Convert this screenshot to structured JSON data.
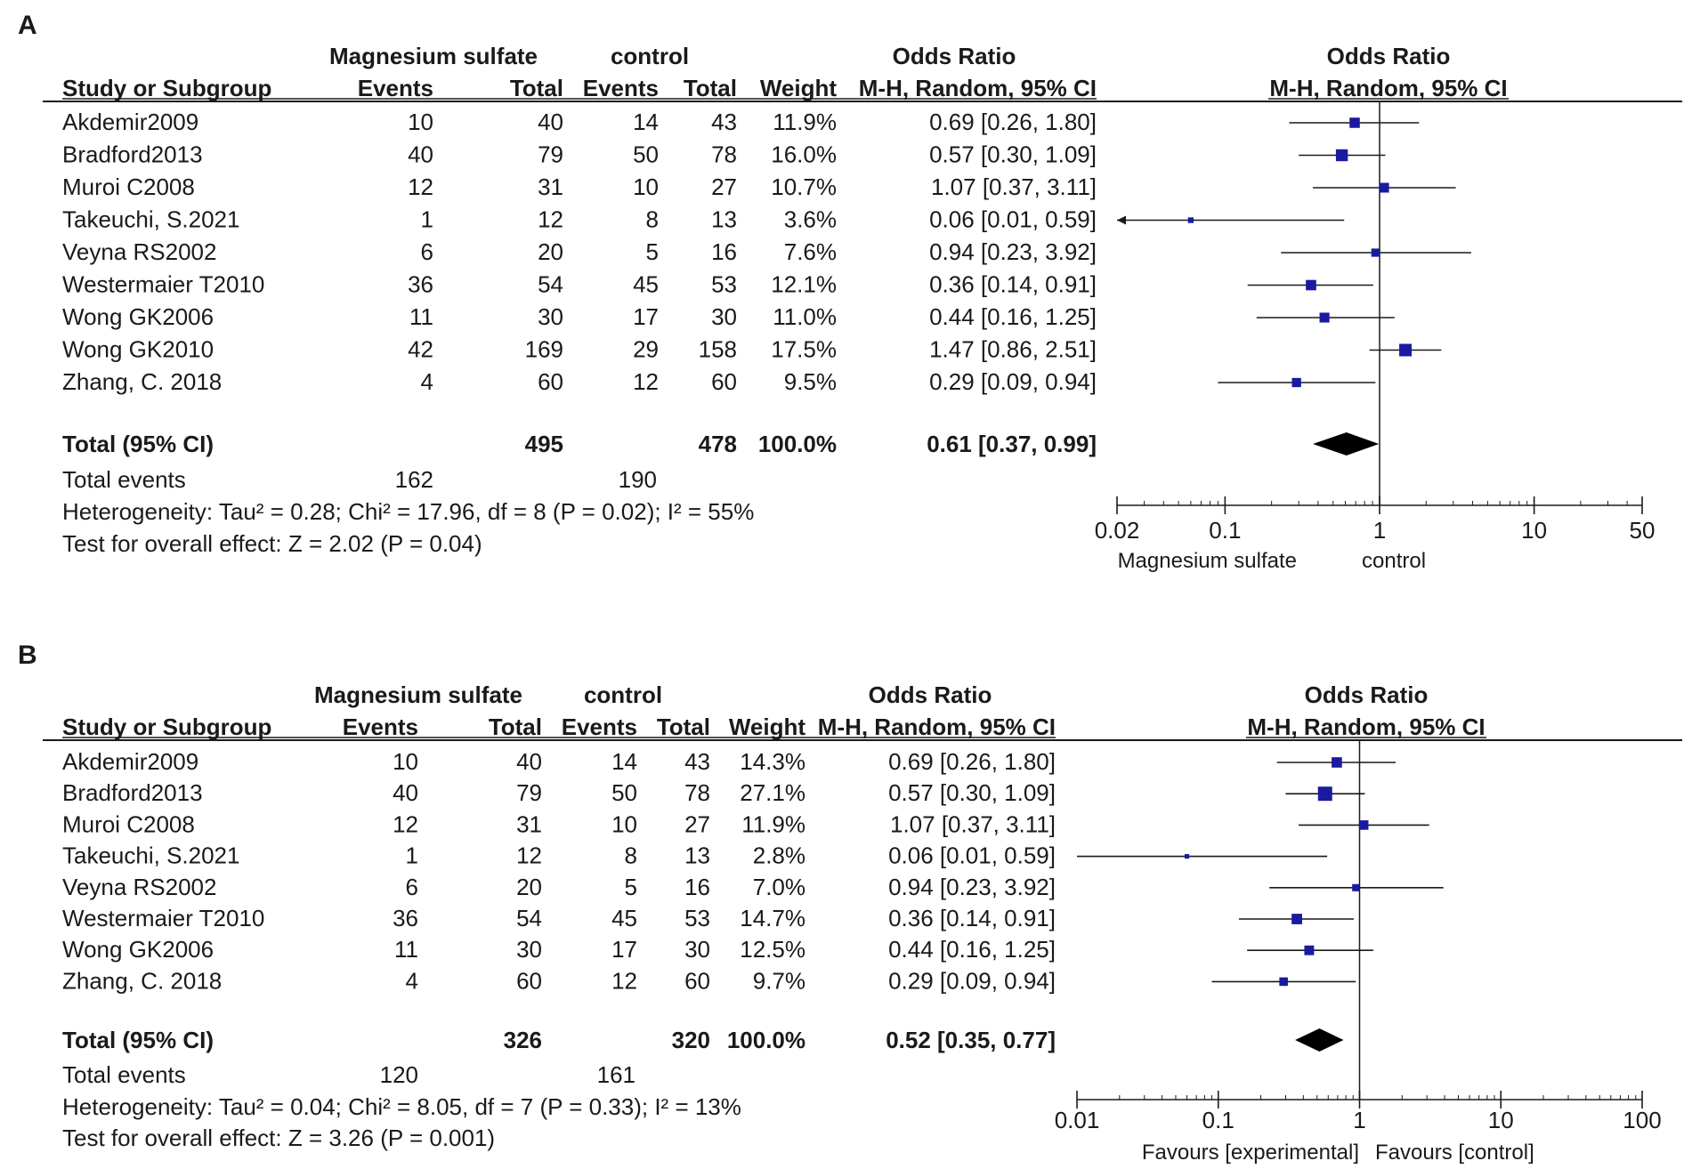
{
  "chart_data": [
    {
      "type": "forest",
      "panel_label": "A",
      "group_headers": {
        "experimental": "Magnesium sulfate",
        "control": "control",
        "or_left": "Odds Ratio",
        "or_right": "Odds Ratio"
      },
      "columns": {
        "study": "Study or Subgroup",
        "exp_events": "Events",
        "exp_total": "Total",
        "ctl_events": "Events",
        "ctl_total": "Total",
        "weight": "Weight",
        "ci": "M-H, Random, 95% CI",
        "ci_plot": "M-H, Random, 95% CI"
      },
      "studies": [
        {
          "name": "Akdemir2009",
          "exp_events": "10",
          "exp_total": "40",
          "ctl_events": "14",
          "ctl_total": "43",
          "weight_label": "11.9%",
          "ci_label": "0.69 [0.26, 1.80]",
          "or": 0.69,
          "lo": 0.26,
          "hi": 1.8,
          "weight": 11.9
        },
        {
          "name": "Bradford2013",
          "exp_events": "40",
          "exp_total": "79",
          "ctl_events": "50",
          "ctl_total": "78",
          "weight_label": "16.0%",
          "ci_label": "0.57 [0.30, 1.09]",
          "or": 0.57,
          "lo": 0.3,
          "hi": 1.09,
          "weight": 16.0
        },
        {
          "name": "Muroi C2008",
          "exp_events": "12",
          "exp_total": "31",
          "ctl_events": "10",
          "ctl_total": "27",
          "weight_label": "10.7%",
          "ci_label": "1.07 [0.37, 3.11]",
          "or": 1.07,
          "lo": 0.37,
          "hi": 3.11,
          "weight": 10.7
        },
        {
          "name": "Takeuchi, S.2021",
          "exp_events": "1",
          "exp_total": "12",
          "ctl_events": "8",
          "ctl_total": "13",
          "weight_label": "3.6%",
          "ci_label": "0.06 [0.01, 0.59]",
          "or": 0.06,
          "lo": 0.01,
          "hi": 0.59,
          "weight": 3.6
        },
        {
          "name": "Veyna RS2002",
          "exp_events": "6",
          "exp_total": "20",
          "ctl_events": "5",
          "ctl_total": "16",
          "weight_label": "7.6%",
          "ci_label": "0.94 [0.23, 3.92]",
          "or": 0.94,
          "lo": 0.23,
          "hi": 3.92,
          "weight": 7.6
        },
        {
          "name": "Westermaier T2010",
          "exp_events": "36",
          "exp_total": "54",
          "ctl_events": "45",
          "ctl_total": "53",
          "weight_label": "12.1%",
          "ci_label": "0.36 [0.14, 0.91]",
          "or": 0.36,
          "lo": 0.14,
          "hi": 0.91,
          "weight": 12.1
        },
        {
          "name": "Wong GK2006",
          "exp_events": "11",
          "exp_total": "30",
          "ctl_events": "17",
          "ctl_total": "30",
          "weight_label": "11.0%",
          "ci_label": "0.44 [0.16, 1.25]",
          "or": 0.44,
          "lo": 0.16,
          "hi": 1.25,
          "weight": 11.0
        },
        {
          "name": "Wong GK2010",
          "exp_events": "42",
          "exp_total": "169",
          "ctl_events": "29",
          "ctl_total": "158",
          "weight_label": "17.5%",
          "ci_label": "1.47 [0.86, 2.51]",
          "or": 1.47,
          "lo": 0.86,
          "hi": 2.51,
          "weight": 17.5
        },
        {
          "name": "Zhang, C. 2018",
          "exp_events": "4",
          "exp_total": "60",
          "ctl_events": "12",
          "ctl_total": "60",
          "weight_label": "9.5%",
          "ci_label": "0.29 [0.09, 0.94]",
          "or": 0.29,
          "lo": 0.09,
          "hi": 0.94,
          "weight": 9.5
        }
      ],
      "total": {
        "label": "Total (95% CI)",
        "exp_total": "495",
        "ctl_total": "478",
        "weight_label": "100.0%",
        "ci_label": "0.61 [0.37, 0.99]",
        "or": 0.61,
        "lo": 0.37,
        "hi": 0.99
      },
      "total_events": {
        "label": "Total events",
        "exp": "162",
        "ctl": "190"
      },
      "heterogeneity": "Heterogeneity: Tau² = 0.28; Chi² = 17.96, df = 8 (P = 0.02); I² = 55%",
      "overall_effect": "Test for overall effect: Z = 2.02 (P = 0.04)",
      "axis": {
        "scale": "log",
        "min": 0.02,
        "max": 50,
        "ticks": [
          0.02,
          0.1,
          1,
          10,
          50
        ],
        "tick_labels": [
          "0.02",
          "0.1",
          "1",
          "10",
          "50"
        ],
        "favours_left": "Magnesium sulfate",
        "favours_right": "control"
      }
    },
    {
      "type": "forest",
      "panel_label": "B",
      "group_headers": {
        "experimental": "Magnesium sulfate",
        "control": "control",
        "or_left": "Odds Ratio",
        "or_right": "Odds Ratio"
      },
      "columns": {
        "study": "Study or Subgroup",
        "exp_events": "Events",
        "exp_total": "Total",
        "ctl_events": "Events",
        "ctl_total": "Total",
        "weight": "Weight",
        "ci": "M-H, Random, 95% CI",
        "ci_plot": "M-H, Random, 95% CI"
      },
      "studies": [
        {
          "name": "Akdemir2009",
          "exp_events": "10",
          "exp_total": "40",
          "ctl_events": "14",
          "ctl_total": "43",
          "weight_label": "14.3%",
          "ci_label": "0.69 [0.26, 1.80]",
          "or": 0.69,
          "lo": 0.26,
          "hi": 1.8,
          "weight": 14.3
        },
        {
          "name": "Bradford2013",
          "exp_events": "40",
          "exp_total": "79",
          "ctl_events": "50",
          "ctl_total": "78",
          "weight_label": "27.1%",
          "ci_label": "0.57 [0.30, 1.09]",
          "or": 0.57,
          "lo": 0.3,
          "hi": 1.09,
          "weight": 27.1
        },
        {
          "name": "Muroi C2008",
          "exp_events": "12",
          "exp_total": "31",
          "ctl_events": "10",
          "ctl_total": "27",
          "weight_label": "11.9%",
          "ci_label": "1.07 [0.37, 3.11]",
          "or": 1.07,
          "lo": 0.37,
          "hi": 3.11,
          "weight": 11.9
        },
        {
          "name": "Takeuchi, S.2021",
          "exp_events": "1",
          "exp_total": "12",
          "ctl_events": "8",
          "ctl_total": "13",
          "weight_label": "2.8%",
          "ci_label": "0.06 [0.01, 0.59]",
          "or": 0.06,
          "lo": 0.01,
          "hi": 0.59,
          "weight": 2.8
        },
        {
          "name": "Veyna RS2002",
          "exp_events": "6",
          "exp_total": "20",
          "ctl_events": "5",
          "ctl_total": "16",
          "weight_label": "7.0%",
          "ci_label": "0.94 [0.23, 3.92]",
          "or": 0.94,
          "lo": 0.23,
          "hi": 3.92,
          "weight": 7.0
        },
        {
          "name": "Westermaier T2010",
          "exp_events": "36",
          "exp_total": "54",
          "ctl_events": "45",
          "ctl_total": "53",
          "weight_label": "14.7%",
          "ci_label": "0.36 [0.14, 0.91]",
          "or": 0.36,
          "lo": 0.14,
          "hi": 0.91,
          "weight": 14.7
        },
        {
          "name": "Wong GK2006",
          "exp_events": "11",
          "exp_total": "30",
          "ctl_events": "17",
          "ctl_total": "30",
          "weight_label": "12.5%",
          "ci_label": "0.44 [0.16, 1.25]",
          "or": 0.44,
          "lo": 0.16,
          "hi": 1.25,
          "weight": 12.5
        },
        {
          "name": "Zhang, C. 2018",
          "exp_events": "4",
          "exp_total": "60",
          "ctl_events": "12",
          "ctl_total": "60",
          "weight_label": "9.7%",
          "ci_label": "0.29 [0.09, 0.94]",
          "or": 0.29,
          "lo": 0.09,
          "hi": 0.94,
          "weight": 9.7
        }
      ],
      "total": {
        "label": "Total (95% CI)",
        "exp_total": "326",
        "ctl_total": "320",
        "weight_label": "100.0%",
        "ci_label": "0.52 [0.35, 0.77]",
        "or": 0.52,
        "lo": 0.35,
        "hi": 0.77
      },
      "total_events": {
        "label": "Total events",
        "exp": "120",
        "ctl": "161"
      },
      "heterogeneity": "Heterogeneity: Tau² = 0.04; Chi² = 8.05, df = 7 (P = 0.33); I² = 13%",
      "overall_effect": "Test for overall effect: Z = 3.26 (P = 0.001)",
      "axis": {
        "scale": "log",
        "min": 0.01,
        "max": 100,
        "ticks": [
          0.01,
          0.1,
          1,
          10,
          100
        ],
        "tick_labels": [
          "0.01",
          "0.1",
          "1",
          "10",
          "100"
        ],
        "favours_left": "Favours [experimental]",
        "favours_right": "Favours [control]"
      }
    }
  ],
  "colors": {
    "marker": "#1a1aa0",
    "line": "#1a1a1a",
    "text": "#1a1a1a",
    "background": "#ffffff"
  }
}
